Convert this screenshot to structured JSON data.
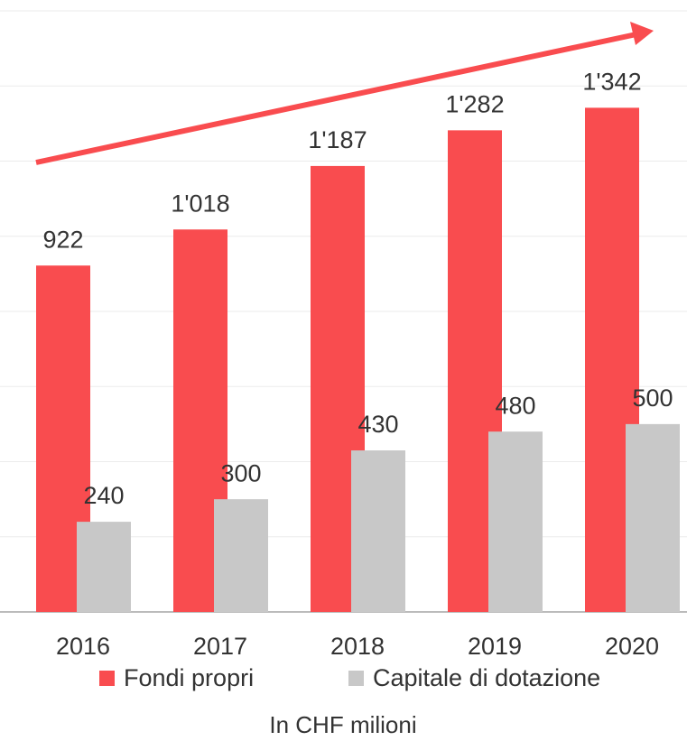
{
  "chart_data": {
    "type": "bar",
    "categories": [
      "2016",
      "2017",
      "2018",
      "2019",
      "2020"
    ],
    "series": [
      {
        "name": "Fondi propri",
        "color": "#f94c4f",
        "values": [
          922,
          1018,
          1187,
          1282,
          1342
        ],
        "value_labels": [
          "922",
          "1'018",
          "1'187",
          "1'282",
          "1'342"
        ]
      },
      {
        "name": "Capitale di dotazione",
        "color": "#c8c8c8",
        "values": [
          240,
          300,
          430,
          480,
          500
        ]
      }
    ],
    "ylim": [
      0,
      1600
    ],
    "yticks": [
      0,
      200,
      400,
      600,
      800,
      1000,
      1200,
      1400,
      1600
    ],
    "grid": true,
    "note": "In CHF milioni"
  }
}
